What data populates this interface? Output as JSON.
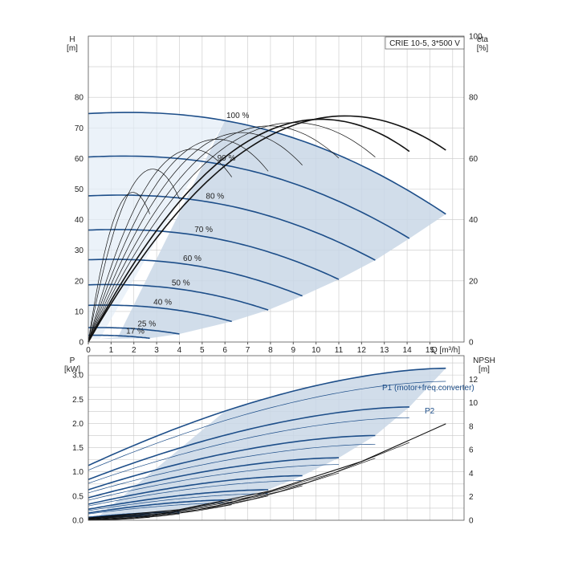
{
  "chart_data": [
    {
      "type": "line",
      "title": "CRIE 10-5, 3*500 V",
      "xlabel": "Q [m³/h]",
      "ylabel": "H\n[m]",
      "ylabel_right": "eta\n[%]",
      "xlim": [
        0,
        16.5
      ],
      "ylim": [
        0,
        100
      ],
      "y2lim": [
        0,
        100
      ],
      "x_ticks": [
        0,
        1,
        2,
        3,
        4,
        5,
        6,
        7,
        8,
        9,
        10,
        11,
        12,
        13,
        14,
        15
      ],
      "y_ticks": [
        0,
        10,
        20,
        30,
        40,
        50,
        60,
        70,
        80
      ],
      "y2_ticks": [
        0,
        20,
        40,
        60,
        80,
        100
      ],
      "grid": true,
      "speed_curves": [
        {
          "label": "100 %",
          "h0": 74.7,
          "qmax": 15.7
        },
        {
          "label": "90 %",
          "h0": 60.5,
          "qmax": 14.1
        },
        {
          "label": "80 %",
          "h0": 47.8,
          "qmax": 12.6
        },
        {
          "label": "70 %",
          "h0": 36.6,
          "qmax": 11.0
        },
        {
          "label": "60 %",
          "h0": 26.9,
          "qmax": 9.4
        },
        {
          "label": "50 %",
          "h0": 18.7,
          "qmax": 7.9
        },
        {
          "label": "40 %",
          "h0": 12.0,
          "qmax": 6.3
        },
        {
          "label": "25 %",
          "h0": 4.7,
          "qmax": 4.0
        },
        {
          "label": "17 %",
          "h0": 2.2,
          "qmax": 2.7
        }
      ],
      "efficiency_peak": [
        {
          "q_bep": 10.4,
          "eta_max": 68
        },
        {
          "q_bep": 9.4,
          "eta_max": 67
        },
        {
          "q_bep": 8.3,
          "eta_max": 66
        },
        {
          "q_bep": 7.3,
          "eta_max": 65
        },
        {
          "q_bep": 6.2,
          "eta_max": 63
        },
        {
          "q_bep": 5.2,
          "eta_max": 61
        },
        {
          "q_bep": 4.2,
          "eta_max": 58
        },
        {
          "q_bep": 2.6,
          "eta_max": 52
        },
        {
          "q_bep": 1.8,
          "eta_max": 45
        }
      ]
    },
    {
      "type": "line",
      "xlabel": "Q [m³/h]",
      "ylabel": "P\n[kW]",
      "ylabel_right": "NPSH\n[m]",
      "xlim": [
        0,
        16.5
      ],
      "ylim": [
        0,
        3.4
      ],
      "y2lim": [
        0,
        14
      ],
      "y_ticks": [
        0.0,
        0.5,
        1.0,
        1.5,
        2.0,
        2.5,
        3.0
      ],
      "y_tick_labels": [
        "0.0",
        "0.5",
        "1.0",
        "1.5",
        "2.0",
        "2.5",
        "3.0"
      ],
      "y2_ticks": [
        0,
        2,
        4,
        6,
        8,
        10,
        12
      ],
      "series": [
        {
          "name": "P1 (motor+freq.converter)",
          "p_end": [
            3.14,
            2.34,
            1.75,
            1.29,
            0.92,
            0.63,
            0.42,
            0.17,
            0.1
          ],
          "qmax": [
            15.7,
            14.1,
            12.6,
            11.0,
            9.4,
            7.9,
            6.3,
            4.0,
            2.7
          ]
        },
        {
          "name": "P2",
          "p_end": [
            2.87,
            2.12,
            1.57,
            1.15,
            0.82,
            0.55,
            0.36,
            0.14,
            0.08
          ],
          "qmax": [
            15.7,
            14.1,
            12.6,
            11.0,
            9.4,
            7.9,
            6.3,
            4.0,
            2.7
          ]
        }
      ],
      "npsh": {
        "x": [
          0,
          4,
          8,
          12,
          15.7
        ],
        "y": [
          0.2,
          0.9,
          2.5,
          5.0,
          8.2
        ]
      }
    }
  ]
}
